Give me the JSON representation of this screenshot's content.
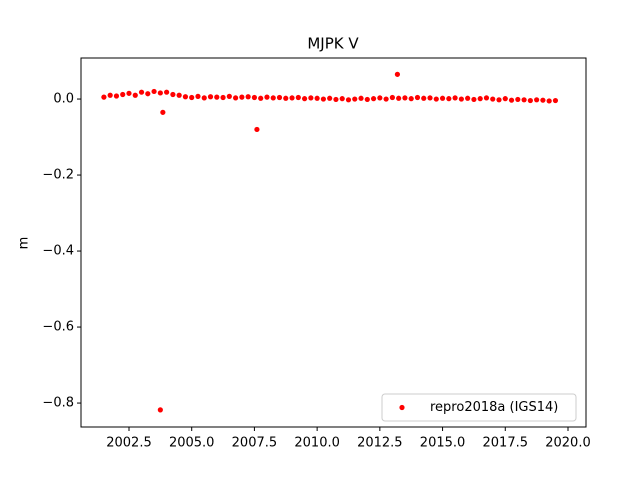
{
  "chart_data": {
    "type": "scatter",
    "title": "MJPK V",
    "y_label": "m",
    "xlim": [
      2000.587,
      2020.718
    ],
    "ylim": [
      -0.863,
      0.108
    ],
    "xticks": [
      2002.5,
      {
        "value": 2005,
        "label": "2005.0"
      },
      2007.5,
      {
        "value": 2010,
        "label": "2010.0"
      },
      2012.5,
      {
        "value": 2015,
        "label": "2015.0"
      },
      2017.5,
      {
        "value": 2020,
        "label": "2020.0"
      }
    ],
    "yticks": [
      {
        "value": -0.8,
        "label": "−0.8"
      },
      {
        "value": -0.6,
        "label": "−0.6"
      },
      {
        "value": -0.4,
        "label": "−0.4"
      },
      {
        "value": -0.2,
        "label": "−0.2"
      },
      {
        "value": 0,
        "label": "0.0"
      }
    ],
    "legend": "lower right",
    "series": [
      {
        "name": "repro2018a (IGS14)",
        "color": "#ff0000",
        "x": [
          2001.5,
          2001.75,
          2002.0,
          2002.25,
          2002.5,
          2002.75,
          2003.0,
          2003.25,
          2003.5,
          2003.75,
          2004.0,
          2004.25,
          2004.5,
          2004.75,
          2005.0,
          2005.25,
          2005.5,
          2005.75,
          2006.0,
          2006.25,
          2006.5,
          2006.75,
          2007.0,
          2007.25,
          2007.5,
          2007.75,
          2008.0,
          2008.25,
          2008.5,
          2008.75,
          2009.0,
          2009.25,
          2009.5,
          2009.75,
          2010.0,
          2010.25,
          2010.5,
          2010.75,
          2011.0,
          2011.25,
          2011.5,
          2011.75,
          2012.0,
          2012.25,
          2012.5,
          2012.75,
          2013.0,
          2013.25,
          2013.5,
          2013.75,
          2014.0,
          2014.25,
          2014.5,
          2014.75,
          2015.0,
          2015.25,
          2015.5,
          2015.75,
          2016.0,
          2016.25,
          2016.5,
          2016.75,
          2017.0,
          2017.25,
          2017.5,
          2017.75,
          2018.0,
          2018.25,
          2018.5,
          2018.75,
          2019.0,
          2019.25,
          2019.5,
          2003.85,
          2003.75,
          2007.6,
          2013.2
        ],
        "values": [
          0.005,
          0.01,
          0.008,
          0.012,
          0.015,
          0.01,
          0.018,
          0.014,
          0.02,
          0.016,
          0.018,
          0.012,
          0.01,
          0.006,
          0.004,
          0.007,
          0.003,
          0.006,
          0.005,
          0.004,
          0.007,
          0.003,
          0.005,
          0.006,
          0.004,
          0.002,
          0.005,
          0.003,
          0.004,
          0.002,
          0.003,
          0.004,
          0.001,
          0.003,
          0.002,
          0.0,
          0.002,
          -0.001,
          0.001,
          -0.002,
          0.0,
          0.002,
          -0.001,
          0.001,
          0.003,
          0.0,
          0.004,
          0.002,
          0.003,
          0.001,
          0.004,
          0.002,
          0.003,
          0.0,
          0.002,
          0.001,
          0.003,
          0.0,
          0.002,
          -0.001,
          0.001,
          0.003,
          0.0,
          -0.002,
          0.001,
          -0.003,
          -0.001,
          -0.002,
          -0.004,
          -0.002,
          -0.003,
          -0.005,
          -0.004,
          -0.035,
          -0.818,
          -0.08,
          0.065
        ]
      }
    ]
  }
}
